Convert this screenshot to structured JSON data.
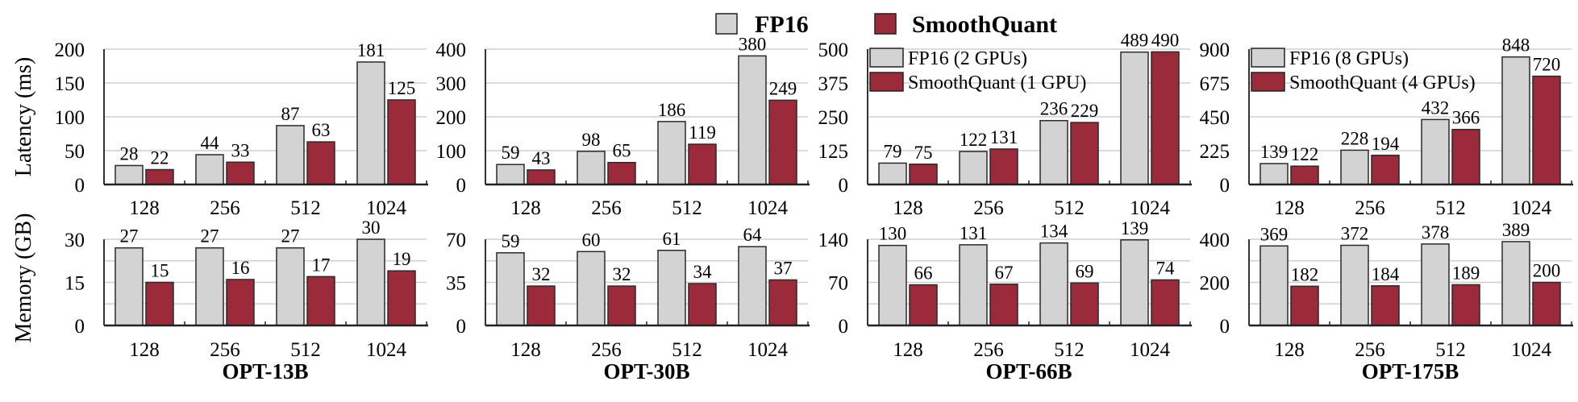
{
  "chart_data": {
    "type": "bar",
    "legend": {
      "placement": "top-center",
      "entries": [
        {
          "label": "FP16",
          "color": "#d3d3d3"
        },
        {
          "label": "SmoothQuant",
          "color": "#9b2b3a"
        }
      ]
    },
    "row_ylabels": [
      "Latency (ms)",
      "Memory (GB)"
    ],
    "categories": [
      "128",
      "256",
      "512",
      "1024"
    ],
    "grid": true,
    "panels": [
      {
        "title": "OPT-13B",
        "inner_legend": [],
        "latency": {
          "ylim": [
            0,
            200
          ],
          "yticks": [
            0,
            50,
            100,
            150,
            200
          ],
          "series": [
            {
              "name": "FP16",
              "values": [
                28,
                44,
                87,
                181
              ]
            },
            {
              "name": "SmoothQuant",
              "values": [
                22,
                33,
                63,
                125
              ]
            }
          ]
        },
        "memory": {
          "ylim": [
            0,
            30
          ],
          "yticks": [
            0,
            15,
            30
          ],
          "series": [
            {
              "name": "FP16",
              "values": [
                27,
                27,
                27,
                30
              ]
            },
            {
              "name": "SmoothQuant",
              "values": [
                15,
                16,
                17,
                19
              ]
            }
          ]
        }
      },
      {
        "title": "OPT-30B",
        "inner_legend": [],
        "latency": {
          "ylim": [
            0,
            400
          ],
          "yticks": [
            0,
            100,
            200,
            300,
            400
          ],
          "series": [
            {
              "name": "FP16",
              "values": [
                59,
                98,
                186,
                380
              ]
            },
            {
              "name": "SmoothQuant",
              "values": [
                43,
                65,
                119,
                249
              ]
            }
          ]
        },
        "memory": {
          "ylim": [
            0,
            70
          ],
          "yticks": [
            0,
            35,
            70
          ],
          "series": [
            {
              "name": "FP16",
              "values": [
                59,
                60,
                61,
                64
              ]
            },
            {
              "name": "SmoothQuant",
              "values": [
                32,
                32,
                34,
                37
              ]
            }
          ]
        }
      },
      {
        "title": "OPT-66B",
        "inner_legend": [
          "FP16 (2 GPUs)",
          "SmoothQuant (1 GPU)"
        ],
        "latency": {
          "ylim": [
            0,
            500
          ],
          "yticks": [
            0,
            125,
            250,
            375,
            500
          ],
          "series": [
            {
              "name": "FP16",
              "values": [
                79,
                122,
                236,
                489
              ]
            },
            {
              "name": "SmoothQuant",
              "values": [
                75,
                131,
                229,
                490
              ]
            }
          ]
        },
        "memory": {
          "ylim": [
            0,
            140
          ],
          "yticks": [
            0,
            70,
            140
          ],
          "series": [
            {
              "name": "FP16",
              "values": [
                130,
                131,
                134,
                139
              ]
            },
            {
              "name": "SmoothQuant",
              "values": [
                66,
                67,
                69,
                74
              ]
            }
          ]
        }
      },
      {
        "title": "OPT-175B",
        "inner_legend": [
          "FP16 (8 GPUs)",
          "SmoothQuant (4 GPUs)"
        ],
        "latency": {
          "ylim": [
            0,
            900
          ],
          "yticks": [
            0,
            225,
            450,
            675,
            900
          ],
          "series": [
            {
              "name": "FP16",
              "values": [
                139,
                228,
                432,
                848
              ]
            },
            {
              "name": "SmoothQuant",
              "values": [
                122,
                194,
                366,
                720
              ]
            }
          ]
        },
        "memory": {
          "ylim": [
            0,
            400
          ],
          "yticks": [
            0,
            200,
            400
          ],
          "series": [
            {
              "name": "FP16",
              "values": [
                369,
                372,
                378,
                389
              ]
            },
            {
              "name": "SmoothQuant",
              "values": [
                182,
                184,
                189,
                200
              ]
            }
          ]
        }
      }
    ]
  }
}
